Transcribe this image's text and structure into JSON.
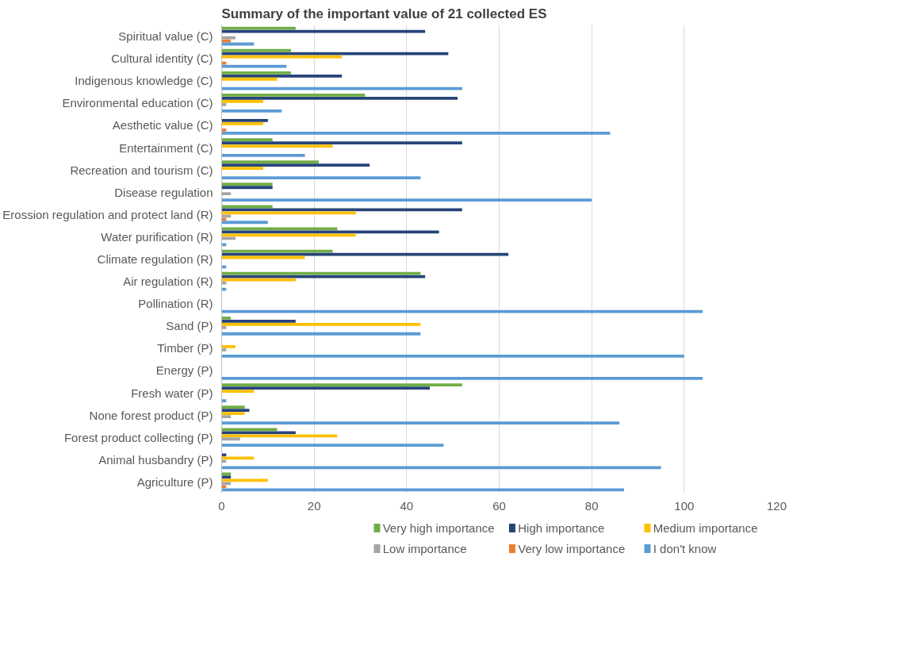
{
  "chart_data": {
    "type": "bar",
    "orientation": "horizontal",
    "title": "Summary of the important value of 21 collected ES",
    "categories": [
      "Spiritual value (C)",
      "Cultural identity (C)",
      "Indigenous knowledge (C)",
      "Environmental education (C)",
      "Aesthetic value (C)",
      "Entertainment (C)",
      "Recreation and tourism (C)",
      "Disease regulation",
      "Erossion regulation and protect land (R)",
      "Water purification (R)",
      "Climate regulation (R)",
      "Air regulation (R)",
      "Pollination (R)",
      "Sand (P)",
      "Timber (P)",
      "Energy (P)",
      "Fresh water (P)",
      "None forest product (P)",
      "Forest product collecting (P)",
      "Animal husbandry (P)",
      "Agriculture (P)"
    ],
    "series": [
      {
        "name": "Very high importance",
        "color": "#70ad47",
        "values": [
          16,
          15,
          15,
          31,
          null,
          11,
          21,
          11,
          11,
          25,
          24,
          43,
          null,
          2,
          null,
          null,
          52,
          5,
          12,
          null,
          2
        ]
      },
      {
        "name": "High importance",
        "color": "#264478",
        "values": [
          44,
          49,
          26,
          51,
          10,
          52,
          32,
          11,
          52,
          47,
          62,
          44,
          null,
          16,
          null,
          null,
          45,
          6,
          16,
          1,
          2
        ]
      },
      {
        "name": "Medium importance",
        "color": "#ffc000",
        "values": [
          null,
          26,
          12,
          9,
          9,
          24,
          9,
          null,
          29,
          29,
          18,
          16,
          null,
          43,
          3,
          null,
          7,
          5,
          25,
          7,
          10
        ]
      },
      {
        "name": "Low importance",
        "color": "#a5a5a5",
        "values": [
          3,
          null,
          null,
          1,
          null,
          null,
          null,
          2,
          2,
          3,
          null,
          1,
          null,
          1,
          1,
          null,
          null,
          2,
          4,
          1,
          2
        ]
      },
      {
        "name": "Very low importance",
        "color": "#ed7d31",
        "values": [
          2,
          1,
          null,
          null,
          1,
          null,
          null,
          null,
          1,
          null,
          null,
          null,
          null,
          null,
          null,
          null,
          null,
          null,
          null,
          null,
          1
        ]
      },
      {
        "name": "I don't know",
        "color": "#5b9bd5",
        "values": [
          7,
          14,
          52,
          13,
          84,
          18,
          43,
          80,
          10,
          1,
          1,
          1,
          104,
          43,
          100,
          104,
          1,
          86,
          48,
          95,
          87
        ]
      }
    ],
    "xlim": [
      0,
      120
    ],
    "xticks": [
      0,
      20,
      40,
      60,
      80,
      100,
      120
    ],
    "grid": "x",
    "legend": "bottom"
  }
}
